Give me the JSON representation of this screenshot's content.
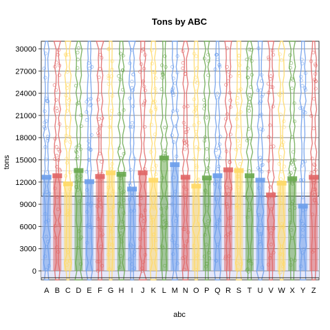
{
  "chart_data": {
    "type": "bar",
    "title": "Tons by ABC",
    "xlabel": "abc",
    "ylabel": "tons",
    "ylim": [
      -1000,
      31000
    ],
    "y_ticks": [
      0,
      3000,
      6000,
      9000,
      12000,
      15000,
      18000,
      21000,
      24000,
      27000,
      30000
    ],
    "y_tick_labels": [
      "0",
      "3000",
      "6000",
      "9000",
      "12000",
      "15000",
      "18000",
      "21000",
      "24000",
      "27000",
      "30000"
    ],
    "categories": [
      "A",
      "B",
      "C",
      "D",
      "E",
      "F",
      "G",
      "H",
      "I",
      "J",
      "K",
      "L",
      "M",
      "N",
      "O",
      "P",
      "Q",
      "R",
      "S",
      "T",
      "U",
      "V",
      "W",
      "X",
      "Y",
      "Z"
    ],
    "values": [
      12700,
      12900,
      11800,
      13600,
      12100,
      12800,
      13300,
      13100,
      11100,
      13300,
      12300,
      15300,
      14400,
      12700,
      11500,
      12600,
      12900,
      13700,
      13600,
      12900,
      12300,
      10300,
      11900,
      12500,
      8800,
      12700
    ],
    "reference_band": [
      -1000,
      10100
    ],
    "grid": true,
    "overlay": "violin with jittered points",
    "colors": {
      "blue": "#6d9eeb",
      "red": "#e06666",
      "yellow": "#ffd966",
      "green": "#6aa84f",
      "band": "#e6e8fa",
      "grid": "#555555"
    },
    "color_cycle": [
      "blue",
      "red",
      "yellow",
      "green"
    ]
  }
}
